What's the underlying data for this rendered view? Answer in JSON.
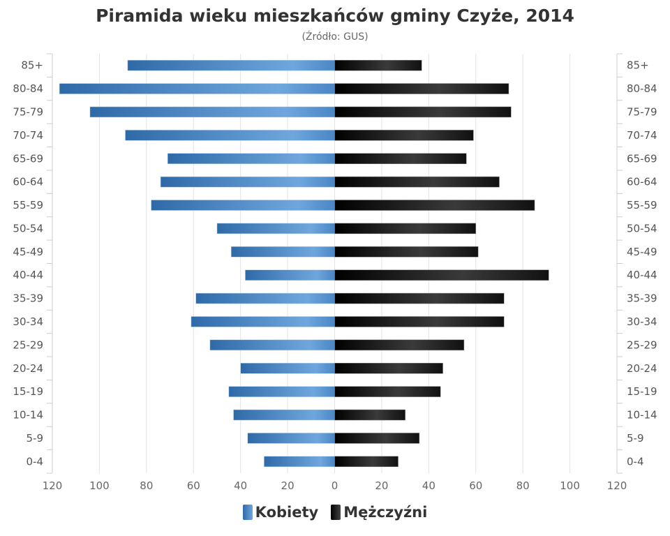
{
  "chart_data": {
    "type": "bar",
    "orientation": "horizontal-pyramid",
    "title": "Piramida wieku mieszkańców gminy Czyże, 2014",
    "subtitle": "(Źródło: GUS)",
    "categories": [
      "85+",
      "80-84",
      "75-79",
      "70-74",
      "65-69",
      "60-64",
      "55-59",
      "50-54",
      "45-49",
      "40-44",
      "35-39",
      "30-34",
      "25-29",
      "20-24",
      "15-19",
      "10-14",
      "5-9",
      "0-4"
    ],
    "series": [
      {
        "name": "Kobiety",
        "color": "#3f7fc1",
        "values": [
          88,
          117,
          104,
          89,
          71,
          74,
          78,
          50,
          44,
          38,
          59,
          61,
          53,
          40,
          45,
          43,
          37,
          30
        ]
      },
      {
        "name": "Mężczyźni",
        "color": "#1a1a1a",
        "values": [
          37,
          74,
          75,
          59,
          56,
          70,
          85,
          60,
          61,
          91,
          72,
          72,
          55,
          46,
          45,
          30,
          36,
          27
        ]
      }
    ],
    "xlim": [
      -120,
      120
    ],
    "xticks": [
      "120",
      "100",
      "80",
      "60",
      "40",
      "20",
      "0",
      "20",
      "40",
      "60",
      "80",
      "100",
      "120"
    ],
    "grid": true,
    "legend": "bottom-center"
  }
}
